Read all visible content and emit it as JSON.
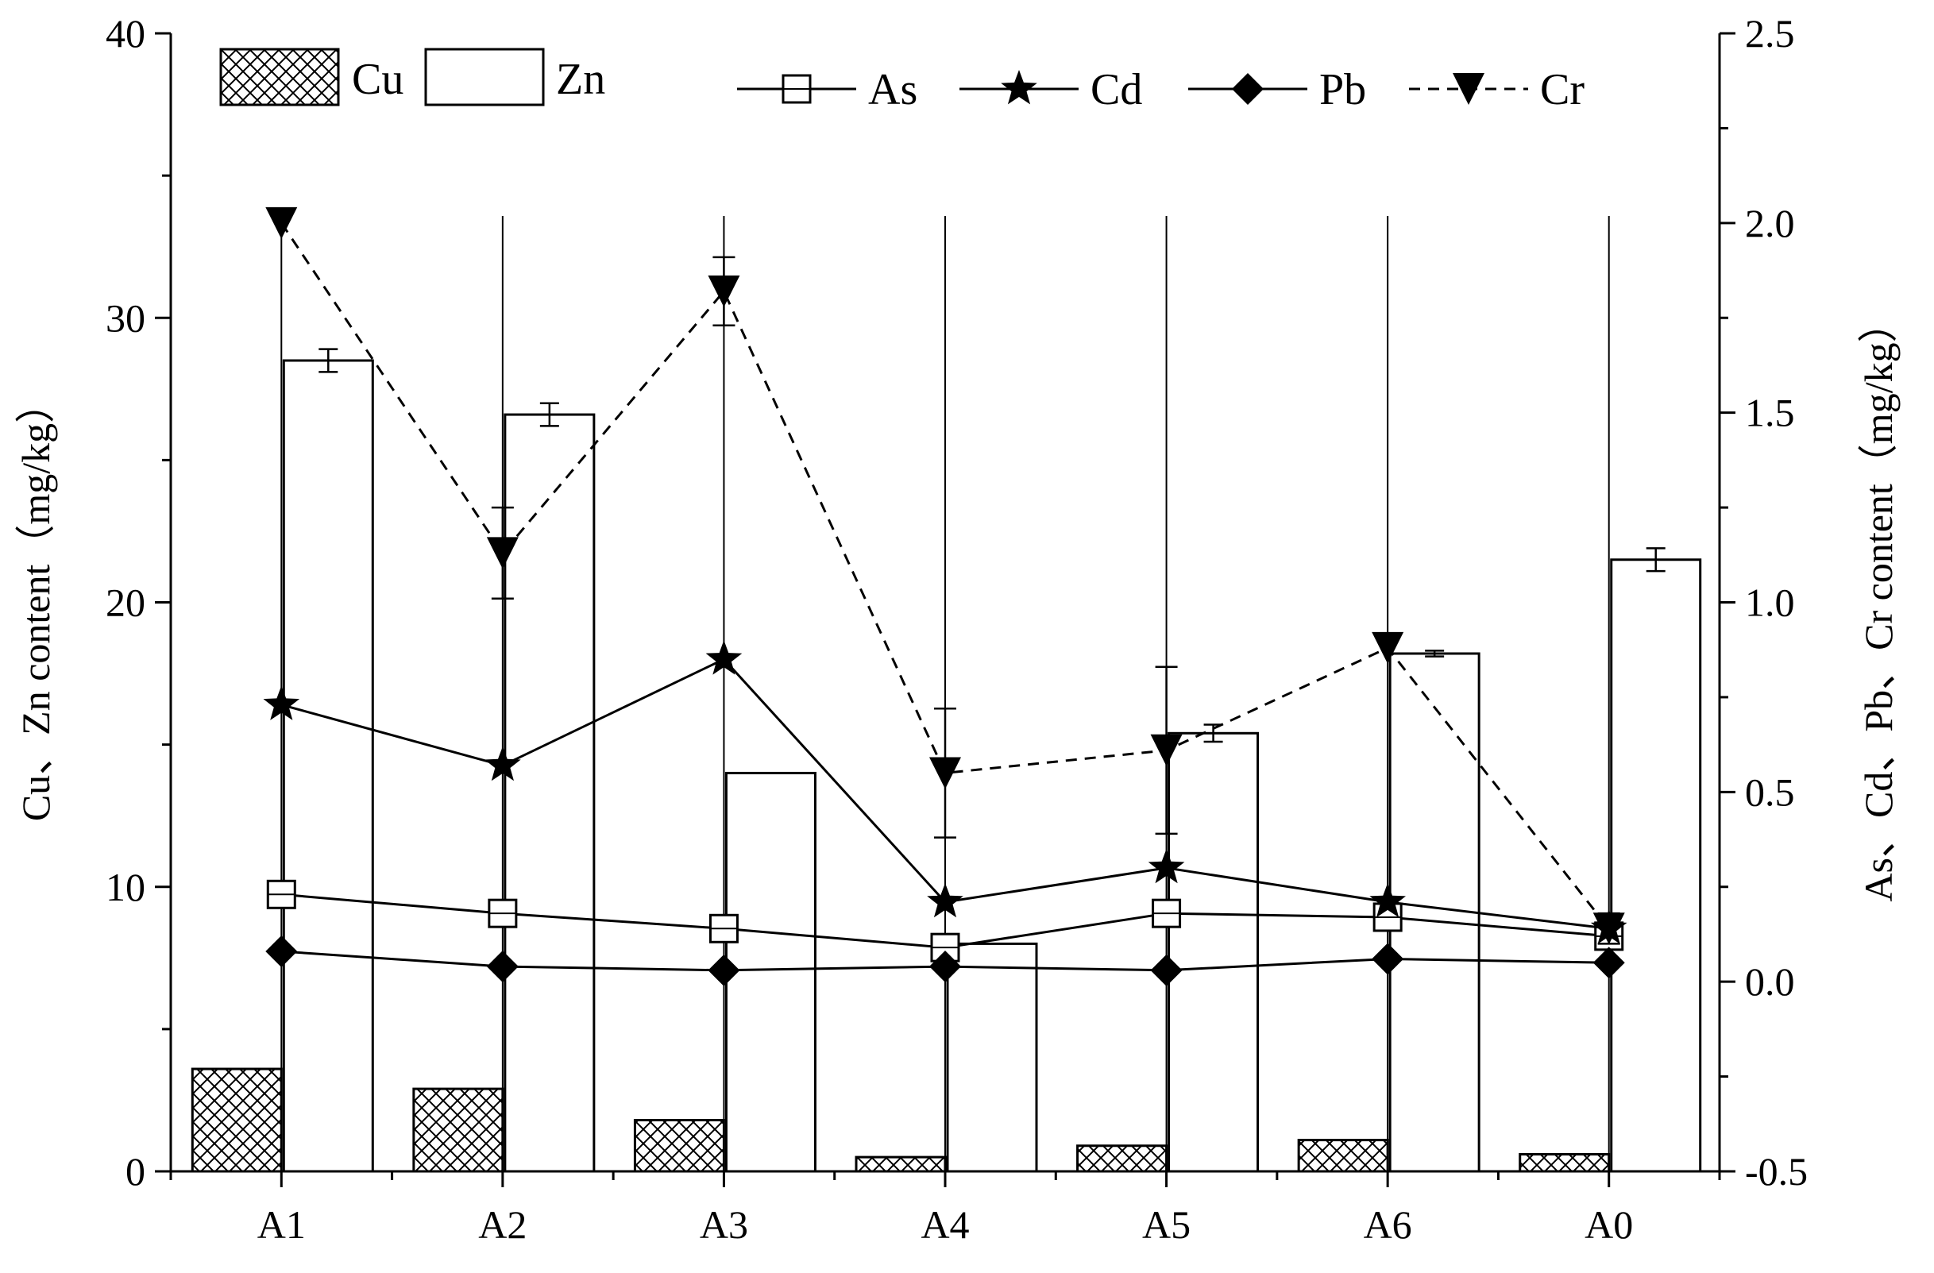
{
  "chart_data": {
    "type": "bar+line",
    "categories": [
      "A1",
      "A2",
      "A3",
      "A4",
      "A5",
      "A6",
      "A0"
    ],
    "left_axis": {
      "label": "Cu、Zn content（mg/kg）",
      "ylim": [
        0,
        40
      ],
      "ticks": [
        "0",
        "10",
        "20",
        "30",
        "40"
      ],
      "tick_values": [
        0,
        10,
        20,
        30,
        40
      ]
    },
    "right_axis": {
      "label": "As、Cd、Pb、Cr content（mg/kg）",
      "ylim": [
        -0.5,
        2.5
      ],
      "ticks": [
        "-0.5",
        "0.0",
        "0.5",
        "1.0",
        "1.5",
        "2.0",
        "2.5"
      ],
      "tick_values": [
        -0.5,
        0.0,
        0.5,
        1.0,
        1.5,
        2.0,
        2.5
      ]
    },
    "bar_series": [
      {
        "name": "Cu",
        "axis": "left",
        "pattern": "crosshatch",
        "values": [
          3.6,
          2.9,
          1.8,
          0.5,
          0.9,
          1.1,
          0.6
        ],
        "errors": [
          0.0,
          0.0,
          0.0,
          0.0,
          0.0,
          0.0,
          0.0
        ]
      },
      {
        "name": "Zn",
        "axis": "left",
        "pattern": "hollow",
        "values": [
          28.5,
          26.6,
          14.0,
          8.0,
          15.4,
          18.2,
          21.5
        ],
        "errors": [
          0.4,
          0.4,
          0.0,
          0.0,
          0.3,
          0.1,
          0.4
        ]
      }
    ],
    "line_series": [
      {
        "name": "As",
        "axis": "right",
        "marker": "open-square",
        "style": "solid",
        "values": [
          0.23,
          0.18,
          0.14,
          0.09,
          0.18,
          0.17,
          0.12
        ]
      },
      {
        "name": "Cd",
        "axis": "right",
        "marker": "star",
        "style": "solid",
        "values": [
          0.73,
          0.57,
          0.85,
          0.21,
          0.3,
          0.21,
          0.14
        ]
      },
      {
        "name": "Pb",
        "axis": "right",
        "marker": "diamond",
        "style": "solid",
        "values": [
          0.08,
          0.04,
          0.03,
          0.04,
          0.03,
          0.06,
          0.05
        ]
      },
      {
        "name": "Cr",
        "axis": "right",
        "marker": "down-triangle",
        "style": "dashed",
        "values": [
          2.0,
          1.13,
          1.82,
          0.55,
          0.61,
          0.88,
          0.14
        ],
        "errors": [
          0.0,
          0.12,
          0.09,
          0.17,
          0.22,
          0.0,
          0.04
        ]
      }
    ],
    "legend": {
      "bars": [
        "Cu",
        "Zn"
      ],
      "lines": [
        "As",
        "Cd",
        "Pb",
        "Cr"
      ],
      "position": "top"
    },
    "grid": false
  }
}
